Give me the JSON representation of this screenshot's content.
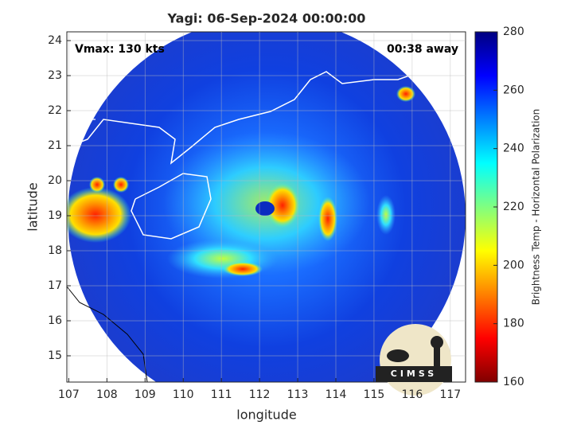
{
  "chart_data": {
    "type": "image",
    "title": "Yagi: 06-Sep-2024 00:00:00",
    "annotations": [
      "Vmax: 130 kts",
      "00:38 away"
    ],
    "xlabel": "longitude",
    "ylabel": "latitude",
    "xlim": [
      106.95,
      117.4
    ],
    "ylim": [
      14.25,
      24.25
    ],
    "xticks": [
      107,
      108,
      109,
      110,
      111,
      112,
      113,
      114,
      115,
      116,
      117
    ],
    "yticks": [
      15,
      16,
      17,
      18,
      19,
      20,
      21,
      22,
      23,
      24
    ],
    "grid": true,
    "colorbar": {
      "label": "Brightness Temp - Horizontal Polarization",
      "lim": [
        160,
        280
      ],
      "ticks": [
        160,
        180,
        200,
        220,
        240,
        260,
        280
      ],
      "colormap": [
        "#800000",
        "#ff0000",
        "#ff8000",
        "#ffff00",
        "#80ff80",
        "#00ffff",
        "#0080ff",
        "#0000ff",
        "#000080"
      ]
    },
    "logo": "CIMSS"
  }
}
